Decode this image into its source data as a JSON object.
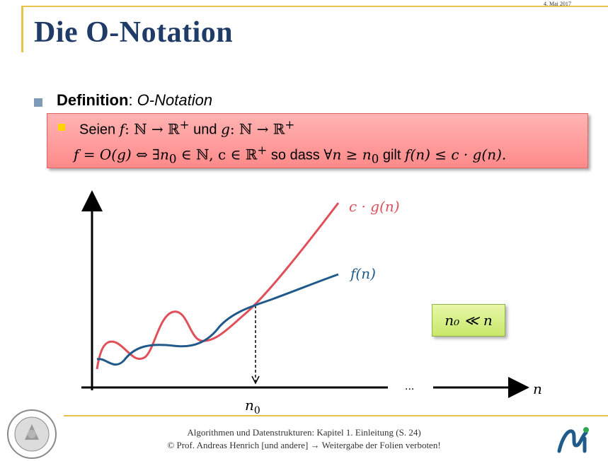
{
  "header": {
    "date": "4. Mai 2017",
    "title": "Die O-Notation"
  },
  "definition": {
    "bold": "Definition",
    "colon": ": ",
    "italic": "O-Notation",
    "line1_seien": "Seien ",
    "line1_f": "f",
    "line1_map1": ": ℕ → ℝ",
    "line1_sup": "+",
    "line1_und": " und ",
    "line1_g": "g",
    "line1_map2": ": ℕ → ℝ",
    "line1_sup2": "+",
    "line2_math": "f = O(g)  ⇔  ∃n",
    "line2_sub0": "0",
    "line2_math2": " ∈ ℕ, c ∈ ℝ",
    "line2_sup": "+",
    "line2_sodass": " so dass ",
    "line2_math3": "∀n ≥ n",
    "line2_sub1": "0",
    "line2_gilt": " gilt ",
    "line2_math4": "f(n) ≤ c · g(n)."
  },
  "chart": {
    "label_cg": "c · g(n)",
    "label_f": "f(n)",
    "label_n0": "n",
    "label_n0_sub": "0",
    "label_n": "n",
    "ellipsis": "...",
    "color_cg": "#e0505a",
    "color_f": "#1f5a8a"
  },
  "n0_box": {
    "text": "n₀ ≪ n"
  },
  "footer": {
    "line1": "Algorithmen und Datenstrukturen: Kapitel 1. Einleitung  (S. 24)",
    "line2": "© Prof. Andreas Henrich [und andere] → Weitergabe der Folien verboten!"
  },
  "seal_text": "UNIVERSITY OF BAMBERG · OTTO-FRIEDRICH-UNIVERSITÄT BAMBERG"
}
